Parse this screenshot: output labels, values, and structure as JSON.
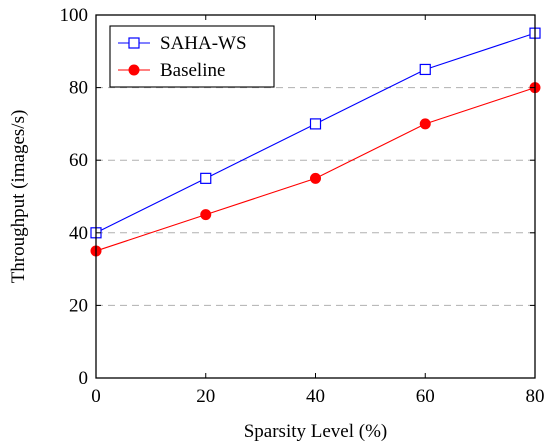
{
  "chart_data": {
    "type": "line",
    "xlabel": "Sparsity Level (%)",
    "ylabel": "Throughput (images/s)",
    "xlim": [
      0,
      80
    ],
    "ylim": [
      0,
      100
    ],
    "x_ticks": [
      0,
      20,
      40,
      60,
      80
    ],
    "y_ticks": [
      0,
      20,
      40,
      60,
      80,
      100
    ],
    "grid": "horizontal dashed",
    "legend_position": "top-left",
    "x": [
      0,
      20,
      40,
      60,
      80
    ],
    "series": [
      {
        "name": "SAHA-WS",
        "values": [
          40,
          55,
          70,
          85,
          95
        ],
        "color": "#0000ff",
        "marker": "open-square"
      },
      {
        "name": "Baseline",
        "values": [
          35,
          45,
          55,
          70,
          80
        ],
        "color": "#ff0000",
        "marker": "filled-circle"
      }
    ]
  }
}
